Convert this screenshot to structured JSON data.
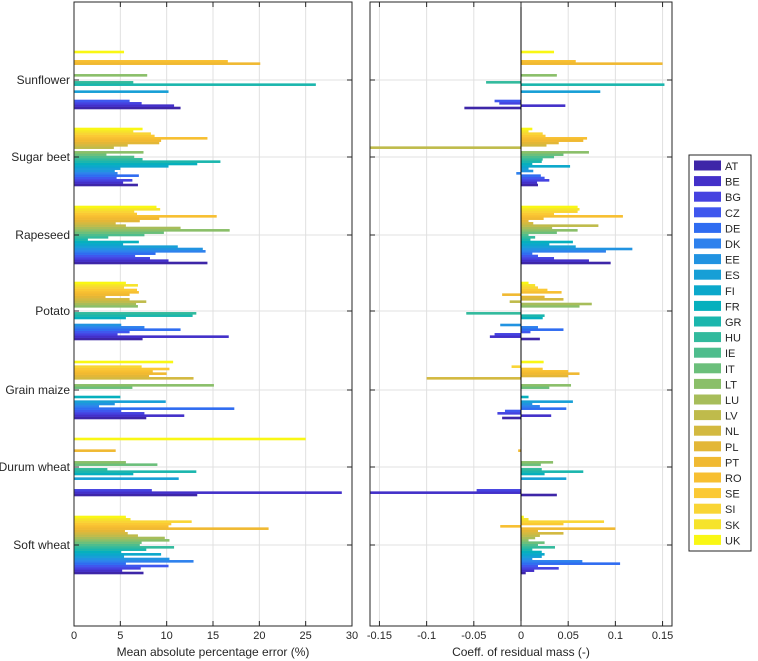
{
  "chart_data": {
    "type": "bar",
    "orientation": "horizontal",
    "crops": [
      "Sunflower",
      "Sugar beet",
      "Rapeseed",
      "Potato",
      "Grain maize",
      "Durum wheat",
      "Soft wheat"
    ],
    "countries": [
      "AT",
      "BE",
      "BG",
      "CZ",
      "DE",
      "DK",
      "EE",
      "ES",
      "FI",
      "FR",
      "GR",
      "HU",
      "IE",
      "IT",
      "LT",
      "LU",
      "LV",
      "NL",
      "PL",
      "PT",
      "RO",
      "SE",
      "SI",
      "SK",
      "UK"
    ],
    "colors": [
      "#3e26a8",
      "#4330c9",
      "#4542e0",
      "#3f57ee",
      "#2f6cf1",
      "#2e81ed",
      "#2193e1",
      "#179fd6",
      "#0ba8cb",
      "#06b0bd",
      "#1bb6ad",
      "#32ba9d",
      "#4ebd8d",
      "#6bbf7b",
      "#8abf69",
      "#a7bd5a",
      "#bfbb4b",
      "#d3b940",
      "#e3b737",
      "#f0b932",
      "#f7bf31",
      "#fbc934",
      "#f9d535",
      "#f6e32b",
      "#f9f714"
    ],
    "legend_position": "right",
    "panels": [
      {
        "xlabel": "Mean absolute percentage error (%)",
        "xlim": [
          0,
          30
        ],
        "xticks": [
          0,
          5,
          10,
          15,
          20,
          25,
          30
        ],
        "xtick_labels": [
          "0",
          "5",
          "10",
          "15",
          "20",
          "25",
          "30"
        ],
        "grid": true,
        "series": {
          "Sunflower": {
            "AT": 11.5,
            "BE": 10.8,
            "BG": 7.3,
            "CZ": 6.0,
            "ES": 10.2,
            "GR": 26.1,
            "HU": 6.4,
            "LT": 7.9,
            "PT": 20.1,
            "RO": 16.6,
            "UK": 5.4
          },
          "Sugar beet": {
            "AT": 6.9,
            "BE": 5.3,
            "BG": 6.3,
            "CZ": 4.6,
            "DE": 7.0,
            "DK": 4.7,
            "EE": 4.4,
            "ES": 5.0,
            "FI": 10.2,
            "FR": 13.3,
            "GR": 15.8,
            "HU": 7.4,
            "IE": 6.5,
            "IT": 3.5,
            "LT": 7.5,
            "LV": 4.3,
            "NL": 5.8,
            "PL": 9.2,
            "PT": 9.4,
            "RO": 14.4,
            "SE": 8.7,
            "SI": 8.3,
            "SK": 6.4,
            "UK": 7.4
          },
          "Rapeseed": {
            "AT": 14.4,
            "BE": 10.2,
            "BG": 8.2,
            "CZ": 6.6,
            "DE": 8.8,
            "DK": 14.2,
            "EE": 13.9,
            "ES": 11.2,
            "FI": 5.3,
            "FR": 7.0,
            "GR": 1.5,
            "HU": 3.7,
            "IE": 7.6,
            "IT": 9.7,
            "LT": 16.8,
            "LU": 11.5,
            "LV": 5.6,
            "NL": 4.5,
            "PL": 7.1,
            "PT": 9.2,
            "RO": 15.4,
            "SE": 6.8,
            "SI": 6.5,
            "SK": 9.3,
            "UK": 8.9
          },
          "Potato": {
            "AT": 7.4,
            "BE": 16.7,
            "BG": 4.7,
            "CZ": 6.0,
            "DE": 11.5,
            "DK": 7.6,
            "EE": 5.1,
            "FR": 5.6,
            "GR": 12.8,
            "HU": 13.2,
            "LT": 6.9,
            "LU": 6.7,
            "LV": 7.8,
            "NL": 6.0,
            "PL": 3.4,
            "PT": 6.0,
            "RO": 7.0,
            "SE": 6.8,
            "SI": 5.4,
            "SK": 6.9,
            "UK": 5.6
          },
          "Grain maize": {
            "AT": 7.8,
            "BE": 11.9,
            "BG": 7.6,
            "CZ": 5.1,
            "DE": 17.3,
            "DK": 2.7,
            "EE": 4.4,
            "ES": 9.9,
            "FR": 5.0,
            "IT": 6.3,
            "LT": 15.1,
            "NL": 12.9,
            "PL": 8.1,
            "PT": 10.0,
            "RO": 8.5,
            "SE": 10.3,
            "SI": 7.3,
            "UK": 10.7
          },
          "Durum wheat": {
            "AT": 13.3,
            "BE": 28.9,
            "BG": 8.4,
            "ES": 11.3,
            "FR": 6.4,
            "GR": 13.2,
            "HU": 3.6,
            "IT": 9.0,
            "LT": 5.6,
            "PT": 4.5,
            "UK": 25.0
          },
          "Soft wheat": {
            "AT": 7.5,
            "BE": 5.2,
            "BG": 7.2,
            "CZ": 10.2,
            "DE": 5.6,
            "DK": 12.9,
            "EE": 10.3,
            "ES": 5.4,
            "FI": 9.4,
            "FR": 5.1,
            "GR": 7.8,
            "HU": 10.8,
            "IE": 7.1,
            "IT": 7.3,
            "LT": 10.3,
            "LU": 9.8,
            "LV": 6.9,
            "NL": 5.8,
            "PL": 5.5,
            "PT": 21.0,
            "RO": 10.2,
            "SE": 10.5,
            "SI": 12.7,
            "SK": 6.1,
            "UK": 5.6
          }
        }
      },
      {
        "xlabel": "Coeff. of residual mass (-)",
        "xlim": [
          -0.16,
          0.16
        ],
        "xticks": [
          -0.15,
          -0.1,
          -0.05,
          0,
          0.05,
          0.1,
          0.15
        ],
        "xtick_labels": [
          "-0.15",
          "-0.1",
          "-0.05",
          "0",
          "0.05",
          "0.1",
          "0.15"
        ],
        "grid": true,
        "series": {
          "Sunflower": {
            "AT": -0.06,
            "BE": 0.047,
            "BG": -0.023,
            "CZ": -0.028,
            "ES": 0.084,
            "GR": 0.152,
            "HU": -0.037,
            "LT": 0.038,
            "PT": 0.15,
            "RO": 0.058,
            "UK": 0.035
          },
          "Sugar beet": {
            "AT": 0.018,
            "BE": 0.017,
            "BG": 0.03,
            "CZ": 0.025,
            "DE": 0.021,
            "DK": -0.005,
            "EE": 0.013,
            "ES": 0.008,
            "FI": 0.052,
            "FR": 0.012,
            "GR": 0.022,
            "HU": 0.023,
            "IE": 0.035,
            "IT": 0.045,
            "LT": 0.072,
            "LV": -0.16,
            "NL": 0.027,
            "PL": 0.04,
            "PT": 0.066,
            "RO": 0.07,
            "SE": 0.026,
            "SI": 0.023,
            "SK": 0.008,
            "UK": 0.012
          },
          "Rapeseed": {
            "AT": 0.095,
            "BE": 0.072,
            "BG": 0.035,
            "CZ": 0.018,
            "DE": 0.012,
            "DK": 0.09,
            "EE": 0.118,
            "ES": 0.058,
            "FI": 0.03,
            "FR": 0.055,
            "GR": 0.01,
            "HU": 0.015,
            "IE": 0.008,
            "IT": 0.038,
            "LT": 0.06,
            "LU": 0.033,
            "LV": 0.082,
            "NL": 0.013,
            "PL": 0.008,
            "PT": 0.024,
            "RO": 0.108,
            "SE": 0.035,
            "SI": 0.06,
            "SK": 0.062,
            "UK": 0.06
          },
          "Potato": {
            "AT": 0.02,
            "BE": -0.033,
            "BG": -0.028,
            "CZ": 0.01,
            "DE": 0.045,
            "DK": 0.018,
            "EE": -0.022,
            "FR": 0.023,
            "GR": 0.025,
            "HU": -0.058,
            "LT": 0.062,
            "LU": 0.075,
            "LV": -0.012,
            "NL": 0.045,
            "PL": 0.025,
            "PT": -0.02,
            "RO": 0.043,
            "SE": 0.028,
            "SI": 0.018,
            "SK": 0.015,
            "UK": 0.008
          },
          "Grain maize": {
            "AT": -0.02,
            "BE": 0.032,
            "BG": -0.025,
            "CZ": -0.017,
            "DE": 0.048,
            "DK": 0.02,
            "EE": 0.012,
            "ES": 0.055,
            "FR": 0.008,
            "IT": 0.03,
            "LT": 0.053,
            "NL": -0.1,
            "PL": 0.05,
            "PT": 0.062,
            "RO": 0.05,
            "SE": 0.023,
            "SI": -0.01,
            "UK": 0.024
          },
          "Durum wheat": {
            "AT": 0.038,
            "BE": -0.16,
            "BG": -0.047,
            "ES": 0.048,
            "FR": 0.025,
            "GR": 0.066,
            "HU": 0.022,
            "IT": 0.021,
            "LT": 0.034,
            "PT": -0.003,
            "UK": 0.0
          },
          "Soft wheat": {
            "AT": 0.005,
            "BE": 0.014,
            "BG": 0.04,
            "CZ": 0.018,
            "DE": 0.105,
            "DK": 0.065,
            "EE": 0.012,
            "ES": 0.022,
            "FI": 0.025,
            "FR": 0.022,
            "GR": 0.012,
            "HU": 0.036,
            "IE": 0.018,
            "IT": 0.025,
            "LT": 0.008,
            "LU": 0.015,
            "LV": 0.02,
            "NL": 0.045,
            "PL": 0.018,
            "PT": 0.1,
            "RO": -0.022,
            "SE": 0.045,
            "SI": 0.088,
            "SK": 0.008,
            "UK": 0.003
          }
        }
      }
    ]
  }
}
